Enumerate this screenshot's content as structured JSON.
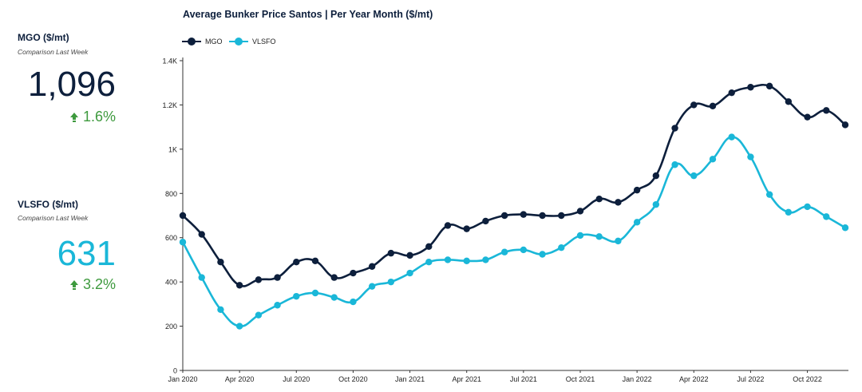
{
  "kpis": {
    "mgo": {
      "title": "MGO ($/mt)",
      "subtitle": "Comparison Last Week",
      "value": "1,096",
      "change": "1.6%",
      "color": "#0d1f3c"
    },
    "vlsfo": {
      "title": "VLSFO ($/mt)",
      "subtitle": "Comparison Last Week",
      "value": "631",
      "change": "3.2%",
      "color": "#1ab7d8"
    },
    "change_color": "#3e9a3e",
    "change_icon": "arrow-up-icon"
  },
  "chart_data": {
    "type": "line",
    "title": "Average Bunker Price Santos | Per Year Month ($/mt)",
    "xlabel": "",
    "ylabel": "",
    "legend_position": "top-left",
    "grid": false,
    "ylim": [
      0,
      1400
    ],
    "y_ticks": [
      0,
      200,
      400,
      600,
      800,
      1000,
      1200,
      1400
    ],
    "y_tick_labels": [
      "0",
      "200",
      "400",
      "600",
      "800",
      "1K",
      "1.2K",
      "1.4K"
    ],
    "x_tick_labels": [
      "Jan 2020",
      "Apr 2020",
      "Jul 2020",
      "Oct 2020",
      "Jan 2021",
      "Apr 2021",
      "Jul 2021",
      "Oct 2021",
      "Jan 2022",
      "Apr 2022",
      "Jul 2022",
      "Oct 2022"
    ],
    "x_tick_index": [
      0,
      3,
      6,
      9,
      12,
      15,
      18,
      21,
      24,
      27,
      30,
      33
    ],
    "x": [
      "Jan 2020",
      "Feb 2020",
      "Mar 2020",
      "Apr 2020",
      "May 2020",
      "Jun 2020",
      "Jul 2020",
      "Aug 2020",
      "Sep 2020",
      "Oct 2020",
      "Nov 2020",
      "Dec 2020",
      "Jan 2021",
      "Feb 2021",
      "Mar 2021",
      "Apr 2021",
      "May 2021",
      "Jun 2021",
      "Jul 2021",
      "Aug 2021",
      "Sep 2021",
      "Oct 2021",
      "Nov 2021",
      "Dec 2021",
      "Jan 2022",
      "Feb 2022",
      "Mar 2022",
      "Apr 2022",
      "May 2022",
      "Jun 2022",
      "Jul 2022",
      "Aug 2022",
      "Sep 2022",
      "Oct 2022",
      "Nov 2022",
      "Dec 2022"
    ],
    "series": [
      {
        "name": "MGO",
        "color": "#0d1f3c",
        "values": [
          700,
          615,
          490,
          385,
          410,
          420,
          490,
          495,
          420,
          440,
          470,
          530,
          520,
          560,
          655,
          640,
          675,
          700,
          705,
          700,
          700,
          720,
          775,
          760,
          815,
          880,
          1095,
          1200,
          1195,
          1255,
          1280,
          1285,
          1215,
          1145,
          1175,
          1110
        ]
      },
      {
        "name": "VLSFO",
        "color": "#1ab7d8",
        "values": [
          580,
          420,
          275,
          200,
          250,
          295,
          335,
          350,
          330,
          310,
          380,
          400,
          440,
          490,
          500,
          495,
          500,
          535,
          545,
          525,
          555,
          610,
          605,
          585,
          670,
          750,
          930,
          880,
          955,
          1055,
          965,
          795,
          715,
          740,
          695,
          645
        ]
      }
    ]
  }
}
